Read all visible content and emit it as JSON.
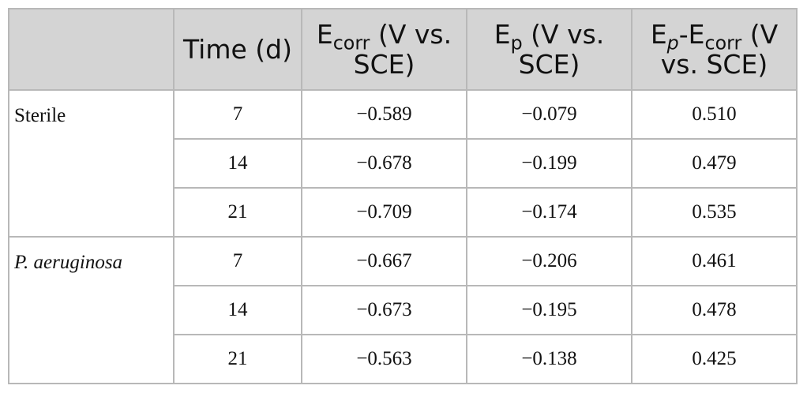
{
  "table": {
    "headers": {
      "col0": "",
      "time": "Time (d)",
      "ecorr": {
        "main": "E",
        "sub": "corr",
        "rest": " (V vs. SCE)"
      },
      "ep": {
        "main": "E",
        "sub": "p",
        "rest": " (V vs. SCE)"
      },
      "diff": {
        "e1": "E",
        "sub1": "p",
        "mid": "-E",
        "sub2": "corr",
        "rest": " (V vs. SCE)"
      }
    },
    "groups": [
      {
        "name": "Sterile",
        "italic": false,
        "rows": [
          {
            "time": "7",
            "ecorr": "−0.589",
            "ep": "−0.079",
            "diff": "0.510"
          },
          {
            "time": "14",
            "ecorr": "−0.678",
            "ep": "−0.199",
            "diff": "0.479"
          },
          {
            "time": "21",
            "ecorr": "−0.709",
            "ep": "−0.174",
            "diff": "0.535"
          }
        ]
      },
      {
        "name": "P. aeruginosa",
        "italic": true,
        "rows": [
          {
            "time": "7",
            "ecorr": "−0.667",
            "ep": "−0.206",
            "diff": "0.461"
          },
          {
            "time": "14",
            "ecorr": "−0.673",
            "ep": "−0.195",
            "diff": "0.478"
          },
          {
            "time": "21",
            "ecorr": "−0.563",
            "ep": "−0.138",
            "diff": "0.425"
          }
        ]
      }
    ]
  }
}
